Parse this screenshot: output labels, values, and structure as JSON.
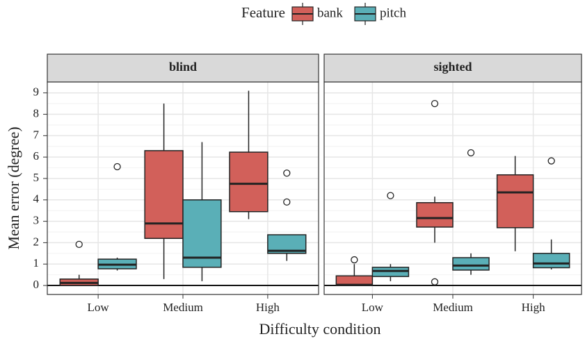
{
  "chart_data": {
    "type": "box",
    "legend_title": "Feature",
    "xlabel": "Difficulty condition",
    "ylabel": "Mean error (degree)",
    "categories": [
      "Low",
      "Medium",
      "High"
    ],
    "ylim": [
      -0.42,
      9.51
    ],
    "yticks": [
      0,
      1,
      2,
      3,
      4,
      5,
      6,
      7,
      8,
      9
    ],
    "grid": true,
    "reference_line": 0,
    "series": [
      {
        "name": "bank",
        "color": "#d2605a"
      },
      {
        "name": "pitch",
        "color": "#5aafb7"
      }
    ],
    "facets": [
      {
        "title": "blind",
        "series": [
          {
            "boxes": [
              {
                "min": 0,
                "q1": 0,
                "median": 0.12,
                "q3": 0.3,
                "max": 0.5,
                "outliers": [
                  1.92
                ]
              },
              {
                "min": 0.3,
                "q1": 2.2,
                "median": 2.9,
                "q3": 6.3,
                "max": 8.5,
                "outliers": []
              },
              {
                "min": 3.1,
                "q1": 3.45,
                "median": 4.75,
                "q3": 6.23,
                "max": 9.1,
                "outliers": []
              }
            ]
          },
          {
            "boxes": [
              {
                "min": 0.7,
                "q1": 0.78,
                "median": 0.97,
                "q3": 1.23,
                "max": 1.3,
                "outliers": [
                  5.55
                ]
              },
              {
                "min": 0.2,
                "q1": 0.85,
                "median": 1.3,
                "q3": 4.0,
                "max": 6.7,
                "outliers": []
              },
              {
                "min": 1.15,
                "q1": 1.5,
                "median": 1.62,
                "q3": 2.37,
                "max": 2.37,
                "outliers": [
                  5.25,
                  3.9
                ]
              }
            ]
          }
        ]
      },
      {
        "title": "sighted",
        "series": [
          {
            "boxes": [
              {
                "min": 0,
                "q1": 0,
                "median": 0.03,
                "q3": 0.45,
                "max": 1.0,
                "outliers": [
                  1.2
                ]
              },
              {
                "min": 2.0,
                "q1": 2.73,
                "median": 3.15,
                "q3": 3.87,
                "max": 4.15,
                "outliers": [
                  8.5,
                  0.17
                ]
              },
              {
                "min": 1.6,
                "q1": 2.7,
                "median": 4.35,
                "q3": 5.17,
                "max": 6.05,
                "outliers": []
              }
            ]
          },
          {
            "boxes": [
              {
                "min": 0.2,
                "q1": 0.42,
                "median": 0.68,
                "q3": 0.85,
                "max": 1.0,
                "outliers": [
                  4.2
                ]
              },
              {
                "min": 0.5,
                "q1": 0.72,
                "median": 0.93,
                "q3": 1.3,
                "max": 1.5,
                "outliers": [
                  6.2
                ]
              },
              {
                "min": 0.75,
                "q1": 0.83,
                "median": 1.03,
                "q3": 1.5,
                "max": 2.15,
                "outliers": [
                  5.82
                ]
              }
            ]
          }
        ]
      }
    ]
  }
}
